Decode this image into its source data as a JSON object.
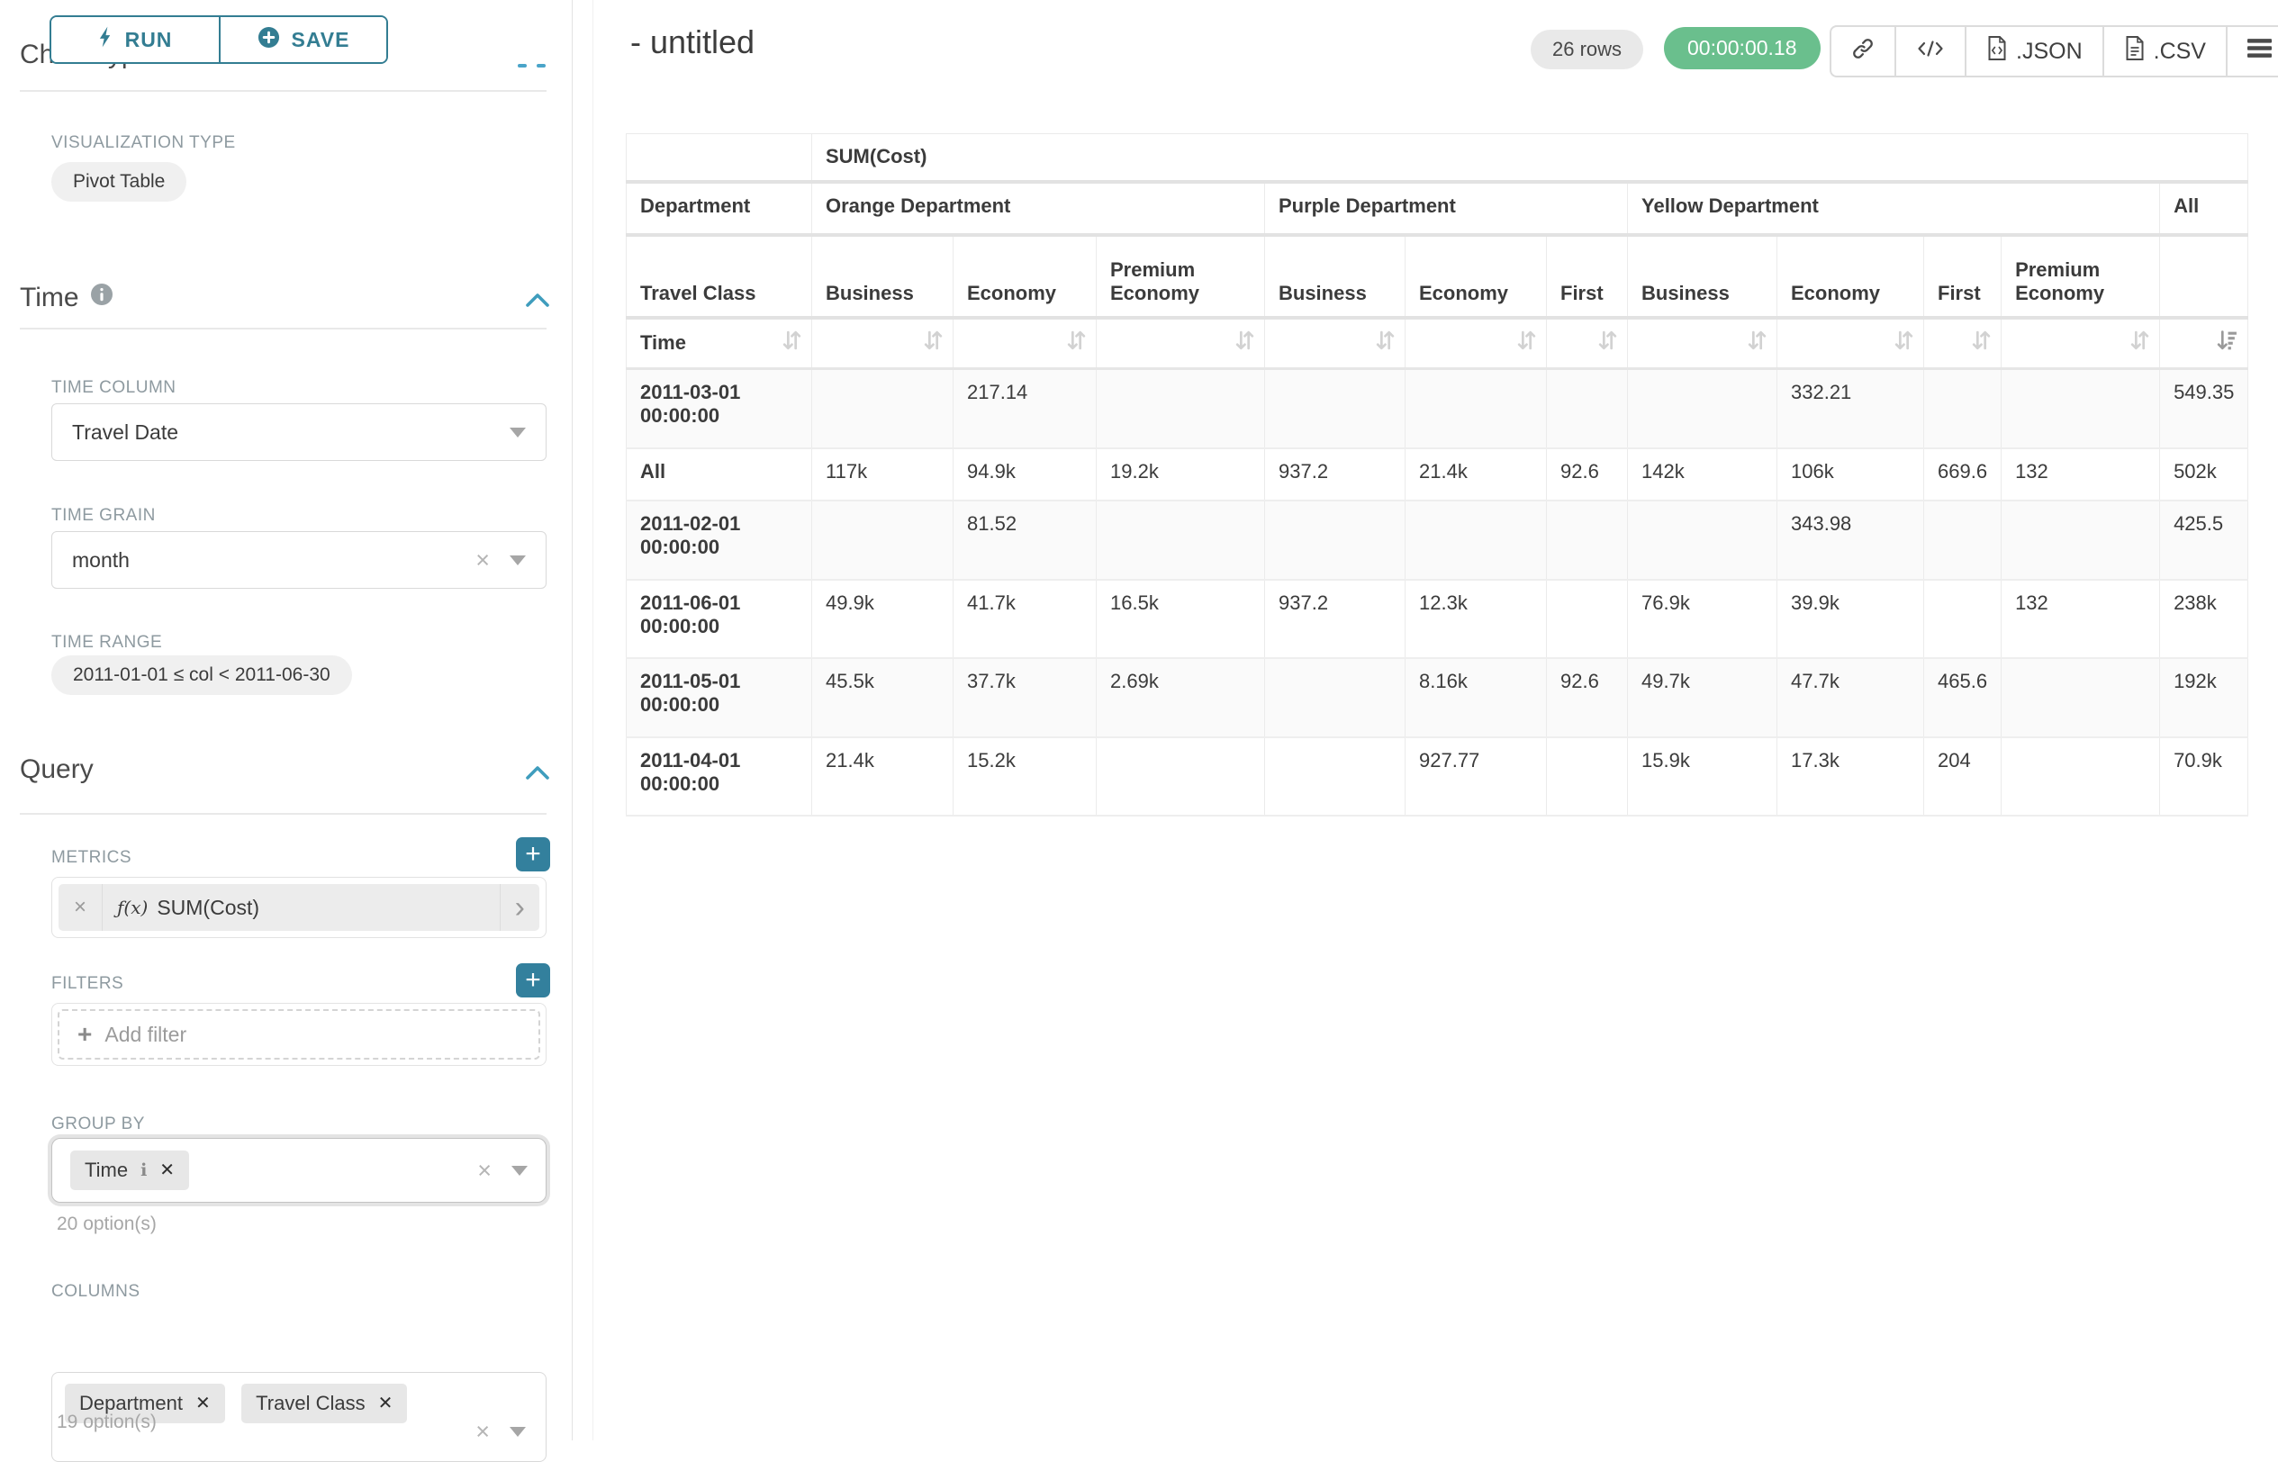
{
  "sidebar": {
    "run_label": "RUN",
    "save_label": "SAVE",
    "chart_type_section": "Chart Type",
    "visualization_type_label": "VISUALIZATION TYPE",
    "visualization_type_value": "Pivot Table",
    "time_section": "Time",
    "time_column_label": "TIME COLUMN",
    "time_column_value": "Travel Date",
    "time_grain_label": "TIME GRAIN",
    "time_grain_value": "month",
    "time_range_label": "TIME RANGE",
    "time_range_value": "2011-01-01 ≤ col < 2011-06-30",
    "query_section": "Query",
    "metrics_label": "METRICS",
    "metric_fx": "ƒ(x)",
    "metric_value": "SUM(Cost)",
    "filters_label": "FILTERS",
    "add_filter_label": "Add filter",
    "group_by_label": "GROUP BY",
    "group_by_chips": [
      {
        "label": "Time"
      }
    ],
    "group_by_options_note": "20 option(s)",
    "columns_label": "COLUMNS",
    "columns_chips": [
      {
        "label": "Department"
      },
      {
        "label": "Travel Class"
      }
    ],
    "columns_options_note": "19 option(s)"
  },
  "header": {
    "title": "- untitled",
    "rows_badge": "26 rows",
    "timer_badge": "00:00:00.18",
    "json_label": ".JSON",
    "csv_label": ".CSV"
  },
  "colors": {
    "accent_teal": "#33809d",
    "timer_green": "#6abf8d",
    "chevron_blue": "#3f9dbd"
  },
  "pivot_table": {
    "metric": "SUM(Cost)",
    "row_dimension": "Time",
    "col_dimensions": [
      "Department",
      "Travel Class"
    ],
    "sorted_column": "All",
    "sort_direction": "desc",
    "col_groups": [
      {
        "name": "Orange Department",
        "cols": [
          "Business",
          "Economy",
          "Premium Economy"
        ]
      },
      {
        "name": "Purple Department",
        "cols": [
          "Business",
          "Economy",
          "First"
        ]
      },
      {
        "name": "Yellow Department",
        "cols": [
          "Business",
          "Economy",
          "First",
          "Premium Economy"
        ]
      },
      {
        "name": "All",
        "cols": [
          ""
        ]
      }
    ],
    "rows": [
      {
        "label": "2011-03-01 00:00:00",
        "values": [
          "",
          "217.14",
          "",
          "",
          "",
          "",
          "",
          "332.21",
          "",
          "",
          "549.35"
        ]
      },
      {
        "label": "All",
        "values": [
          "117k",
          "94.9k",
          "19.2k",
          "937.2",
          "21.4k",
          "92.6",
          "142k",
          "106k",
          "669.6",
          "132",
          "502k"
        ]
      },
      {
        "label": "2011-02-01 00:00:00",
        "values": [
          "",
          "81.52",
          "",
          "",
          "",
          "",
          "",
          "343.98",
          "",
          "",
          "425.5"
        ]
      },
      {
        "label": "2011-06-01 00:00:00",
        "values": [
          "49.9k",
          "41.7k",
          "16.5k",
          "937.2",
          "12.3k",
          "",
          "76.9k",
          "39.9k",
          "",
          "132",
          "238k"
        ]
      },
      {
        "label": "2011-05-01 00:00:00",
        "values": [
          "45.5k",
          "37.7k",
          "2.69k",
          "",
          "8.16k",
          "92.6",
          "49.7k",
          "47.7k",
          "465.6",
          "",
          "192k"
        ]
      },
      {
        "label": "2011-04-01 00:00:00",
        "values": [
          "21.4k",
          "15.2k",
          "",
          "",
          "927.77",
          "",
          "15.9k",
          "17.3k",
          "204",
          "",
          "70.9k"
        ]
      }
    ]
  }
}
